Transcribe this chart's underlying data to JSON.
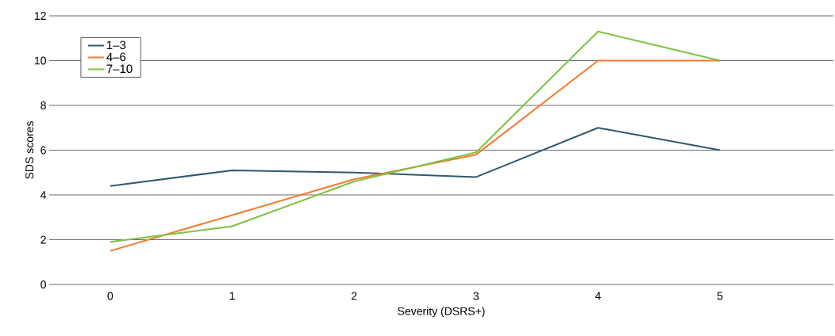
{
  "chart_data": {
    "type": "line",
    "xlabel": "Severity (DSRS+)",
    "ylabel": "SDS scores",
    "categories": [
      "0",
      "1",
      "2",
      "3",
      "4",
      "5"
    ],
    "series": [
      {
        "name": "1–3",
        "color": "#2e5b6e",
        "values": [
          4.4,
          5.1,
          5.0,
          4.8,
          7.0,
          6.0
        ]
      },
      {
        "name": "4–6",
        "color": "#f47a2e",
        "values": [
          1.5,
          3.1,
          4.7,
          5.8,
          10.0,
          10.0
        ]
      },
      {
        "name": "7–10",
        "color": "#7dc242",
        "values": [
          1.9,
          2.6,
          4.6,
          5.9,
          11.3,
          10.0
        ]
      }
    ],
    "ylim": [
      0,
      12
    ],
    "yticks": [
      0,
      2,
      4,
      6,
      8,
      10,
      12
    ],
    "grid": "y",
    "legend": "top left",
    "marker": "none",
    "line_style": "solid"
  }
}
